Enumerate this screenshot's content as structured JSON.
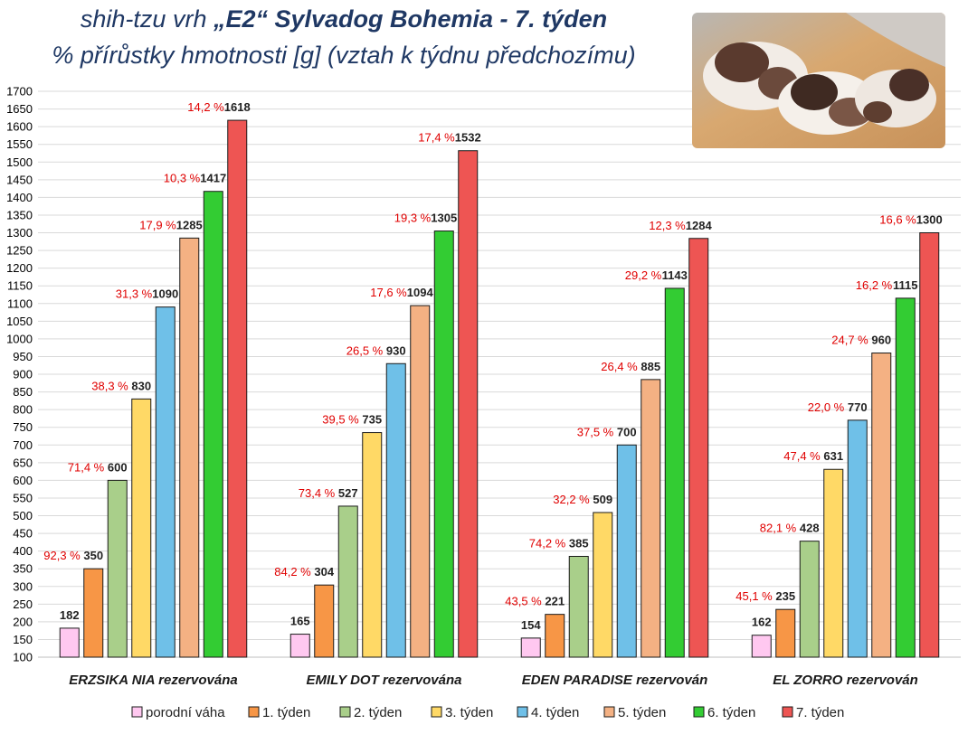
{
  "title": {
    "line1_prefix": "shih-tzu vrh ",
    "line1_bold": "„E2“ Sylvadog Bohemia - 7. týden",
    "line2": "% přírůstky hmotnosti [g] (vztah k týdnu předchozímu)"
  },
  "photo": {
    "description_icon": "puppies-photo"
  },
  "chart_data": {
    "type": "bar",
    "ylim": [
      100,
      1700
    ],
    "ytick_step": 50,
    "grid": true,
    "legend_position": "bottom",
    "categories": [
      "ERZSIKA NIA rezervována",
      "EMILY DOT rezervována",
      "EDEN PARADISE rezervován",
      "EL ZORRO  rezervován"
    ],
    "series": [
      {
        "name": "porodní váha",
        "color": "#ffc8f0",
        "values": [
          182,
          165,
          154,
          162
        ],
        "growth": [
          "",
          "",
          "",
          ""
        ]
      },
      {
        "name": "1. týden",
        "color": "#f79646",
        "values": [
          350,
          304,
          221,
          235
        ],
        "growth": [
          "92,3 %",
          "84,2 %",
          "43,5 %",
          "45,1 %"
        ]
      },
      {
        "name": "2. týden",
        "color": "#a9cf8a",
        "values": [
          600,
          527,
          385,
          428
        ],
        "growth": [
          "71,4 %",
          "73,4 %",
          "74,2 %",
          "82,1 %"
        ]
      },
      {
        "name": "3. týden",
        "color": "#ffd966",
        "values": [
          830,
          735,
          509,
          631
        ],
        "growth": [
          "38,3 %",
          "39,5 %",
          "32,2 %",
          "47,4 %"
        ]
      },
      {
        "name": "4. týden",
        "color": "#6fc0e8",
        "values": [
          1090,
          930,
          700,
          770
        ],
        "growth": [
          "31,3 %",
          "26,5 %",
          "37,5 %",
          "22,0 %"
        ]
      },
      {
        "name": "5. týden",
        "color": "#f4b183",
        "values": [
          1285,
          1094,
          885,
          960
        ],
        "growth": [
          "17,9 %",
          "17,6 %",
          "26,4 %",
          "24,7 %"
        ]
      },
      {
        "name": "6. týden",
        "color": "#33cc33",
        "values": [
          1417,
          1305,
          1143,
          1115
        ],
        "growth": [
          "10,3 %",
          "19,3 %",
          "29,2 %",
          "16,2 %"
        ]
      },
      {
        "name": "7. týden",
        "color": "#ee5553",
        "values": [
          1618,
          1532,
          1284,
          1300
        ],
        "growth": [
          "14,2 %",
          "17,4 %",
          "12,3 %",
          "16,6 %"
        ]
      }
    ]
  }
}
